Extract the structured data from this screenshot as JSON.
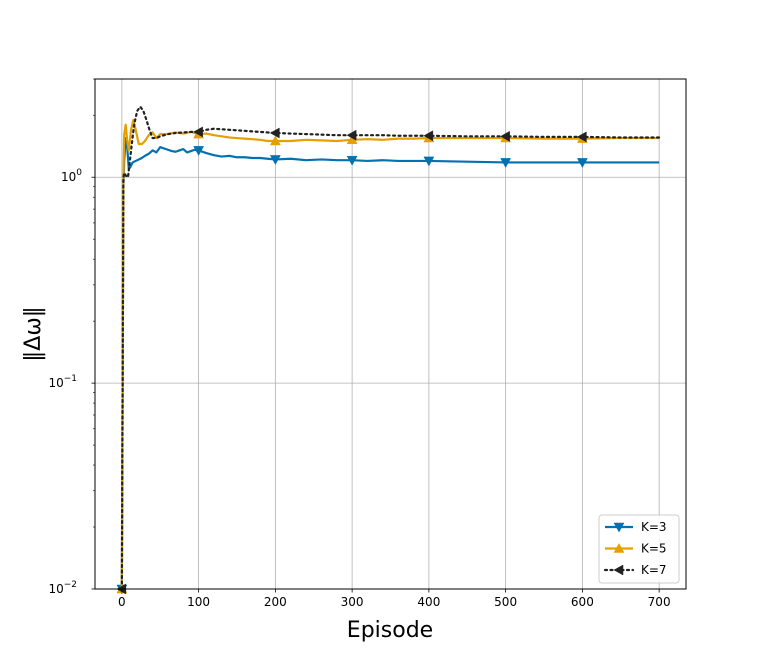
{
  "chart_data": {
    "type": "line",
    "title": "",
    "xlabel": "Episode",
    "ylabel": "‖Δω‖",
    "xlim": [
      -35,
      735
    ],
    "ylim": [
      0.01,
      3.0
    ],
    "yscale": "log",
    "grid": true,
    "legend_position": "bottom-right",
    "x_ticks": [
      0,
      100,
      200,
      300,
      400,
      500,
      600,
      700
    ],
    "x_tick_labels": [
      "0",
      "100",
      "200",
      "300",
      "400",
      "500",
      "600",
      "700"
    ],
    "y_ticks": [
      0.01,
      0.1,
      1
    ],
    "y_tick_labels": [
      {
        "base": "10",
        "exp": "−2"
      },
      {
        "base": "10",
        "exp": "−1"
      },
      {
        "base": "10",
        "exp": "0"
      }
    ],
    "series": [
      {
        "name": "K=3",
        "color": "#0072B2",
        "line_style": "solid",
        "marker": "triangle-down",
        "marker_x": [
          0,
          100,
          200,
          300,
          400,
          500,
          600
        ],
        "x": [
          0,
          1,
          2,
          3,
          5,
          7,
          9,
          11,
          14,
          18,
          22,
          26,
          30,
          35,
          40,
          45,
          50,
          55,
          60,
          65,
          70,
          75,
          80,
          85,
          90,
          95,
          100,
          110,
          120,
          130,
          140,
          150,
          160,
          170,
          180,
          190,
          200,
          220,
          240,
          260,
          280,
          300,
          320,
          340,
          360,
          380,
          400,
          450,
          500,
          550,
          600,
          650,
          700
        ],
        "values": [
          0.01,
          0.1,
          0.9,
          1.2,
          1.55,
          1.4,
          1.1,
          1.12,
          1.18,
          1.2,
          1.22,
          1.24,
          1.27,
          1.3,
          1.35,
          1.32,
          1.4,
          1.38,
          1.36,
          1.34,
          1.33,
          1.35,
          1.37,
          1.32,
          1.34,
          1.36,
          1.35,
          1.31,
          1.28,
          1.26,
          1.27,
          1.25,
          1.25,
          1.24,
          1.24,
          1.23,
          1.22,
          1.23,
          1.21,
          1.22,
          1.21,
          1.21,
          1.2,
          1.21,
          1.2,
          1.2,
          1.2,
          1.19,
          1.18,
          1.18,
          1.18,
          1.18,
          1.18
        ]
      },
      {
        "name": "K=5",
        "color": "#E69F00",
        "line_style": "solid",
        "marker": "triangle-up",
        "marker_x": [
          0,
          100,
          200,
          300,
          400,
          500,
          600
        ],
        "x": [
          0,
          1,
          2,
          3,
          5,
          7,
          9,
          12,
          15,
          18,
          22,
          26,
          30,
          35,
          40,
          45,
          50,
          55,
          60,
          70,
          80,
          90,
          100,
          110,
          120,
          130,
          140,
          150,
          160,
          170,
          180,
          190,
          200,
          220,
          240,
          260,
          280,
          300,
          320,
          340,
          360,
          380,
          400,
          450,
          500,
          550,
          600,
          650,
          700
        ],
        "values": [
          0.01,
          0.1,
          1.0,
          1.6,
          1.8,
          1.5,
          1.35,
          1.7,
          1.9,
          1.7,
          1.45,
          1.45,
          1.5,
          1.6,
          1.65,
          1.55,
          1.62,
          1.62,
          1.62,
          1.65,
          1.63,
          1.66,
          1.62,
          1.63,
          1.6,
          1.58,
          1.56,
          1.55,
          1.54,
          1.53,
          1.52,
          1.5,
          1.5,
          1.5,
          1.52,
          1.51,
          1.5,
          1.52,
          1.53,
          1.52,
          1.54,
          1.54,
          1.55,
          1.55,
          1.55,
          1.54,
          1.54,
          1.55,
          1.55
        ]
      },
      {
        "name": "K=7",
        "color": "#222222",
        "line_style": "dotted",
        "marker": "triangle-left",
        "marker_x": [
          0,
          100,
          200,
          300,
          400,
          500,
          600
        ],
        "x": [
          0,
          1,
          2,
          3,
          5,
          8,
          12,
          16,
          20,
          24,
          28,
          32,
          36,
          40,
          45,
          50,
          55,
          60,
          70,
          80,
          90,
          100,
          110,
          120,
          130,
          140,
          150,
          160,
          170,
          180,
          190,
          200,
          220,
          240,
          260,
          280,
          300,
          320,
          340,
          360,
          380,
          400,
          450,
          500,
          550,
          600,
          650,
          700
        ],
        "values": [
          0.01,
          0.1,
          1.0,
          1.05,
          1.02,
          1.0,
          1.35,
          1.8,
          2.1,
          2.2,
          2.1,
          1.9,
          1.7,
          1.55,
          1.55,
          1.58,
          1.6,
          1.62,
          1.64,
          1.65,
          1.66,
          1.66,
          1.7,
          1.72,
          1.71,
          1.7,
          1.69,
          1.68,
          1.67,
          1.66,
          1.65,
          1.64,
          1.63,
          1.62,
          1.61,
          1.6,
          1.6,
          1.6,
          1.6,
          1.59,
          1.59,
          1.59,
          1.58,
          1.58,
          1.57,
          1.57,
          1.56,
          1.56
        ]
      }
    ]
  }
}
